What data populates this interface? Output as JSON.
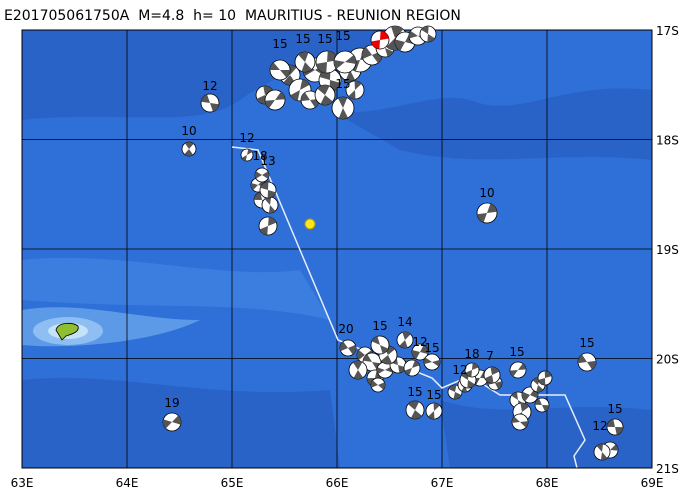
{
  "header": {
    "title": "E201705061750A  M=4.8  h= 10  MAURITIUS - REUNION REGION"
  },
  "axes": {
    "longitude_labels": [
      "63E",
      "64E",
      "65E",
      "66E",
      "67E",
      "68E",
      "69E"
    ],
    "latitude_labels": [
      "17S",
      "18S",
      "19S",
      "20S",
      "21S"
    ]
  },
  "events": [
    "15",
    "15",
    "15",
    "15",
    "12",
    "10",
    "12",
    "18",
    "13",
    "15",
    "10",
    "20",
    "15",
    "14",
    "12",
    "15",
    "12",
    "7",
    "15",
    "15",
    "15",
    "15",
    "19",
    "15",
    "12",
    "18"
  ]
}
